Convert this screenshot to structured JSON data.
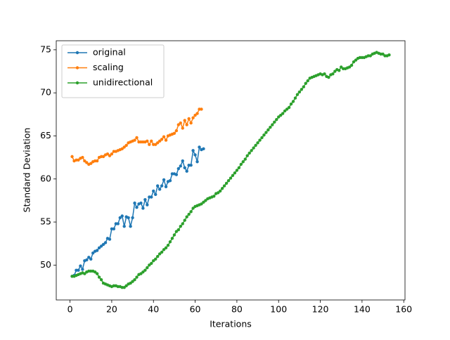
{
  "chart_data": {
    "type": "line",
    "xlabel": "Iterations",
    "ylabel": "Standard Deviation",
    "xlim": [
      -6.6,
      160.6
    ],
    "ylim": [
      45.95,
      76.05
    ],
    "xticks": [
      0,
      20,
      40,
      60,
      80,
      100,
      120,
      140,
      160
    ],
    "yticks": [
      50,
      55,
      60,
      65,
      70,
      75
    ],
    "legend": "upper left",
    "series": [
      {
        "name": "original",
        "color": "#1f77b4",
        "x": [
          1,
          2,
          3,
          4,
          5,
          6,
          7,
          8,
          9,
          10,
          11,
          12,
          13,
          14,
          15,
          16,
          17,
          18,
          19,
          20,
          21,
          22,
          23,
          24,
          25,
          26,
          27,
          28,
          29,
          30,
          31,
          32,
          33,
          34,
          35,
          36,
          37,
          38,
          39,
          40,
          41,
          42,
          43,
          44,
          45,
          46,
          47,
          48,
          49,
          50,
          51,
          52,
          53,
          54,
          55,
          56,
          57,
          58,
          59,
          60,
          61,
          62,
          63,
          64
        ],
        "values": [
          48.7,
          48.8,
          49.4,
          49.4,
          49.9,
          49.5,
          50.5,
          50.6,
          50.9,
          50.7,
          51.4,
          51.6,
          51.7,
          52.0,
          52.2,
          52.4,
          52.6,
          53.1,
          53.0,
          54.2,
          54.2,
          54.8,
          54.8,
          55.5,
          55.7,
          54.5,
          55.6,
          55.5,
          54.5,
          55.5,
          57.2,
          56.7,
          57.1,
          57.2,
          56.6,
          57.6,
          57.0,
          57.9,
          57.9,
          58.6,
          58.2,
          59.2,
          58.8,
          59.2,
          59.9,
          59.1,
          59.7,
          59.8,
          60.6,
          60.6,
          60.5,
          61.2,
          61.5,
          62.1,
          61.3,
          60.9,
          61.6,
          61.6,
          63.3,
          62.8,
          62.0,
          63.7,
          63.4,
          63.5
        ]
      },
      {
        "name": "scaling",
        "color": "#ff7f0e",
        "x": [
          1,
          2,
          3,
          4,
          5,
          6,
          7,
          8,
          9,
          10,
          11,
          12,
          13,
          14,
          15,
          16,
          17,
          18,
          19,
          20,
          21,
          22,
          23,
          24,
          25,
          26,
          27,
          28,
          29,
          30,
          31,
          32,
          33,
          34,
          35,
          36,
          37,
          38,
          39,
          40,
          41,
          42,
          43,
          44,
          45,
          46,
          47,
          48,
          49,
          50,
          51,
          52,
          53,
          54,
          55,
          56,
          57,
          58,
          59,
          60,
          61,
          62,
          63
        ],
        "values": [
          62.6,
          62.1,
          62.2,
          62.2,
          62.4,
          62.5,
          62.1,
          61.9,
          61.7,
          61.8,
          62.0,
          62.1,
          62.1,
          62.5,
          62.6,
          62.6,
          62.8,
          62.9,
          62.7,
          62.9,
          63.2,
          63.2,
          63.3,
          63.4,
          63.5,
          63.7,
          63.9,
          64.2,
          64.3,
          64.4,
          64.5,
          64.8,
          64.3,
          64.3,
          64.3,
          64.3,
          64.4,
          64.0,
          64.4,
          64.0,
          64.0,
          64.2,
          64.4,
          64.6,
          64.9,
          64.5,
          65.0,
          65.1,
          65.2,
          65.3,
          65.6,
          66.3,
          66.5,
          65.9,
          66.8,
          66.3,
          67.0,
          66.5,
          67.1,
          67.4,
          67.6,
          68.1,
          68.1
        ]
      },
      {
        "name": "unidirectional",
        "color": "#2ca02c",
        "x": [
          1,
          2,
          3,
          4,
          5,
          6,
          7,
          8,
          9,
          10,
          11,
          12,
          13,
          14,
          15,
          16,
          17,
          18,
          19,
          20,
          21,
          22,
          23,
          24,
          25,
          26,
          27,
          28,
          29,
          30,
          31,
          32,
          33,
          34,
          35,
          36,
          37,
          38,
          39,
          40,
          41,
          42,
          43,
          44,
          45,
          46,
          47,
          48,
          49,
          50,
          51,
          52,
          53,
          54,
          55,
          56,
          57,
          58,
          59,
          60,
          61,
          62,
          63,
          64,
          65,
          66,
          67,
          68,
          69,
          70,
          71,
          72,
          73,
          74,
          75,
          76,
          77,
          78,
          79,
          80,
          81,
          82,
          83,
          84,
          85,
          86,
          87,
          88,
          89,
          90,
          91,
          92,
          93,
          94,
          95,
          96,
          97,
          98,
          99,
          100,
          101,
          102,
          103,
          104,
          105,
          106,
          107,
          108,
          109,
          110,
          111,
          112,
          113,
          114,
          115,
          116,
          117,
          118,
          119,
          120,
          121,
          122,
          123,
          124,
          125,
          126,
          127,
          128,
          129,
          130,
          131,
          132,
          133,
          134,
          135,
          136,
          137,
          138,
          139,
          140,
          141,
          142,
          143,
          144,
          145,
          146,
          147,
          148,
          149,
          150,
          151,
          152,
          153
        ],
        "values": [
          48.7,
          48.7,
          48.8,
          48.9,
          49.0,
          49.1,
          49.0,
          49.2,
          49.3,
          49.3,
          49.3,
          49.2,
          49.0,
          48.6,
          48.3,
          47.9,
          47.8,
          47.7,
          47.6,
          47.5,
          47.6,
          47.6,
          47.5,
          47.5,
          47.4,
          47.4,
          47.6,
          47.8,
          47.9,
          48.1,
          48.3,
          48.6,
          48.9,
          49.0,
          49.2,
          49.4,
          49.7,
          50.0,
          50.2,
          50.5,
          50.7,
          51.0,
          51.3,
          51.5,
          51.8,
          52.0,
          52.3,
          52.7,
          53.1,
          53.5,
          53.9,
          54.1,
          54.5,
          54.8,
          55.2,
          55.6,
          55.9,
          56.2,
          56.6,
          56.8,
          56.9,
          57.0,
          57.1,
          57.3,
          57.5,
          57.7,
          57.8,
          57.9,
          58.0,
          58.3,
          58.4,
          58.6,
          58.9,
          59.2,
          59.5,
          59.8,
          60.1,
          60.4,
          60.7,
          61.0,
          61.3,
          61.7,
          62.0,
          62.3,
          62.7,
          63.0,
          63.3,
          63.6,
          63.9,
          64.2,
          64.5,
          64.8,
          65.1,
          65.4,
          65.7,
          66.0,
          66.3,
          66.6,
          66.9,
          67.2,
          67.4,
          67.6,
          67.9,
          68.1,
          68.3,
          68.7,
          69.0,
          69.4,
          69.8,
          70.1,
          70.4,
          70.7,
          71.1,
          71.4,
          71.7,
          71.8,
          71.9,
          72.0,
          72.1,
          72.2,
          72.1,
          72.2,
          71.9,
          71.8,
          72.1,
          72.2,
          72.5,
          72.7,
          72.6,
          73.0,
          72.8,
          72.8,
          72.9,
          73.0,
          73.2,
          73.6,
          73.8,
          74.0,
          74.1,
          74.1,
          74.1,
          74.2,
          74.3,
          74.3,
          74.5,
          74.6,
          74.7,
          74.6,
          74.5,
          74.5,
          74.3,
          74.3,
          74.4
        ]
      }
    ]
  }
}
